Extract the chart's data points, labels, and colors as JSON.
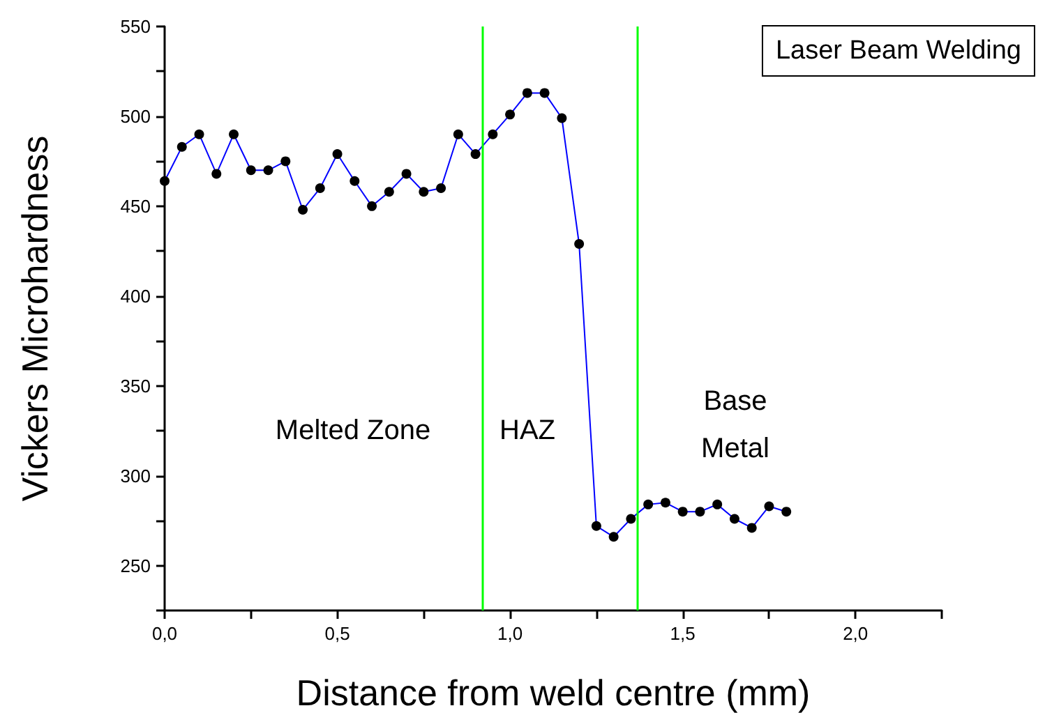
{
  "chart_data": {
    "type": "line",
    "title": "Laser Beam Welding",
    "xlabel": "Distance from weld centre (mm)",
    "ylabel": "Vickers Microhardness",
    "x": [
      0,
      0.05,
      0.1,
      0.15,
      0.2,
      0.25,
      0.3,
      0.35,
      0.4,
      0.45,
      0.5,
      0.55,
      0.6,
      0.65,
      0.7,
      0.75,
      0.8,
      0.85,
      0.9,
      0.95,
      1.0,
      1.05,
      1.1,
      1.15,
      1.2,
      1.25,
      1.3,
      1.35,
      1.4,
      1.45,
      1.5,
      1.55,
      1.6,
      1.65,
      1.7,
      1.75,
      1.8
    ],
    "series": [
      {
        "color": "#0000ff",
        "values": [
          464,
          483,
          490,
          468,
          490,
          470,
          470,
          475,
          448,
          460,
          479,
          464,
          450,
          458,
          468,
          458,
          460,
          490,
          479,
          490,
          501,
          513,
          513,
          499,
          429,
          272,
          266,
          276,
          284,
          285,
          280,
          280,
          284,
          276,
          271,
          283,
          280
        ]
      }
    ],
    "marker": "circle",
    "line_style": "solid",
    "grid": false,
    "xlim": [
      0,
      2.25
    ],
    "ylim": [
      225,
      550
    ],
    "xticks": [
      {
        "value": 0,
        "label": "0,0"
      },
      {
        "value": 0.25,
        "label": null
      },
      {
        "value": 0.5,
        "label": "0,5"
      },
      {
        "value": 0.75,
        "label": null
      },
      {
        "value": 1,
        "label": "1,0"
      },
      {
        "value": 1.25,
        "label": null
      },
      {
        "value": 1.5,
        "label": "1,5"
      },
      {
        "value": 1.75,
        "label": null
      },
      {
        "value": 2,
        "label": "2,0"
      },
      {
        "value": 2.25,
        "label": null
      }
    ],
    "yticks": [
      {
        "value": 225,
        "label": null
      },
      250,
      {
        "value": 275,
        "label": null
      },
      300,
      {
        "value": 325,
        "label": null
      },
      350,
      {
        "value": 375,
        "label": null
      },
      400,
      {
        "value": 425,
        "label": null
      },
      450,
      {
        "value": 475,
        "label": null
      },
      500,
      {
        "value": 525,
        "label": null
      },
      550
    ],
    "ref_lines": [
      {
        "axis": "x",
        "value": 0.92,
        "color": "#00ff00"
      },
      {
        "axis": "x",
        "value": 1.37,
        "color": "#00ff00"
      }
    ],
    "annotations": [
      "Melted Zone",
      "HAZ",
      "Base\nMetal"
    ]
  }
}
